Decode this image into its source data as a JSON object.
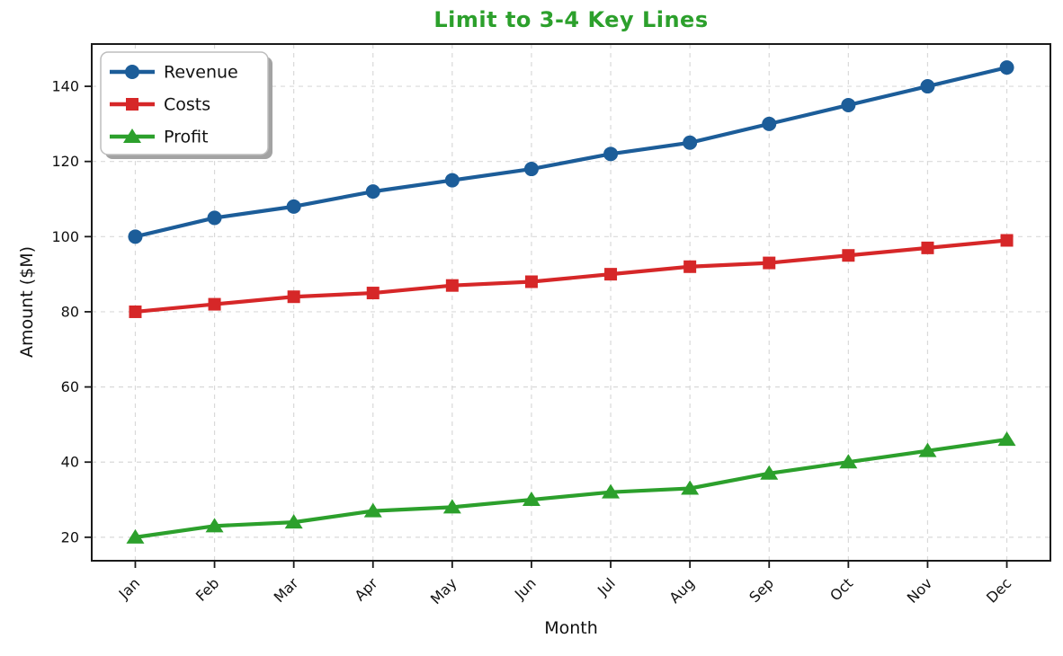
{
  "chart_data": {
    "type": "line",
    "title": "Limit to 3-4 Key Lines",
    "title_color": "#2ca02c",
    "xlabel": "Month",
    "ylabel": "Amount ($M)",
    "categories": [
      "Jan",
      "Feb",
      "Mar",
      "Apr",
      "May",
      "Jun",
      "Jul",
      "Aug",
      "Sep",
      "Oct",
      "Nov",
      "Dec"
    ],
    "series": [
      {
        "name": "Revenue",
        "marker": "circle",
        "color": "#1c5d99",
        "values": [
          100,
          105,
          108,
          112,
          115,
          118,
          122,
          125,
          130,
          135,
          140,
          145
        ]
      },
      {
        "name": "Costs",
        "marker": "square",
        "color": "#d62728",
        "values": [
          80,
          82,
          84,
          85,
          87,
          88,
          90,
          92,
          93,
          95,
          97,
          99
        ]
      },
      {
        "name": "Profit",
        "marker": "triangle",
        "color": "#2ca02c",
        "values": [
          20,
          23,
          24,
          27,
          28,
          30,
          32,
          33,
          37,
          40,
          43,
          46
        ]
      }
    ],
    "yticks": [
      20,
      40,
      60,
      80,
      100,
      120,
      140
    ],
    "ylim": [
      13.75,
      151.25
    ],
    "grid": true,
    "grid_color": "#d9d9d9",
    "axis_color": "#1a1a1a",
    "background": "#ffffff",
    "legend_position": "upper-left"
  }
}
